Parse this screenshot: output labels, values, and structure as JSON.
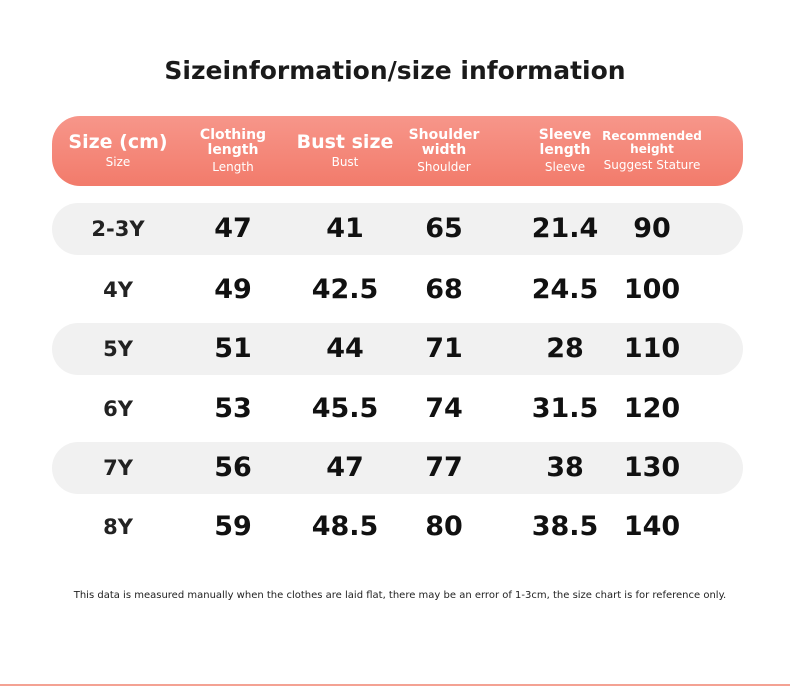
{
  "title": "Sizeinformation/size information",
  "table": {
    "columns": [
      {
        "label": "Size (cm)",
        "sub": "Size"
      },
      {
        "label": "Clothing length",
        "sub": "Length"
      },
      {
        "label": "Bust size",
        "sub": "Bust"
      },
      {
        "label": "Shoulder width",
        "sub": "Shoulder"
      },
      {
        "label": "Sleeve length",
        "sub": "Sleeve"
      },
      {
        "label": "Recommended height",
        "sub": "Suggest Stature"
      }
    ],
    "rows": [
      [
        "2-3Y",
        47,
        41,
        65,
        21.4,
        90
      ],
      [
        "4Y",
        49,
        42.5,
        68,
        24.5,
        100
      ],
      [
        "5Y",
        51,
        44,
        71,
        28,
        110
      ],
      [
        "6Y",
        53,
        45.5,
        74,
        31.5,
        120
      ],
      [
        "7Y",
        56,
        47,
        77,
        38,
        130
      ],
      [
        "8Y",
        59,
        48.5,
        80,
        38.5,
        140
      ]
    ]
  },
  "note": "This data is measured manually when the clothes are laid flat, there may be an error of 1-3cm, the size chart is for reference only."
}
